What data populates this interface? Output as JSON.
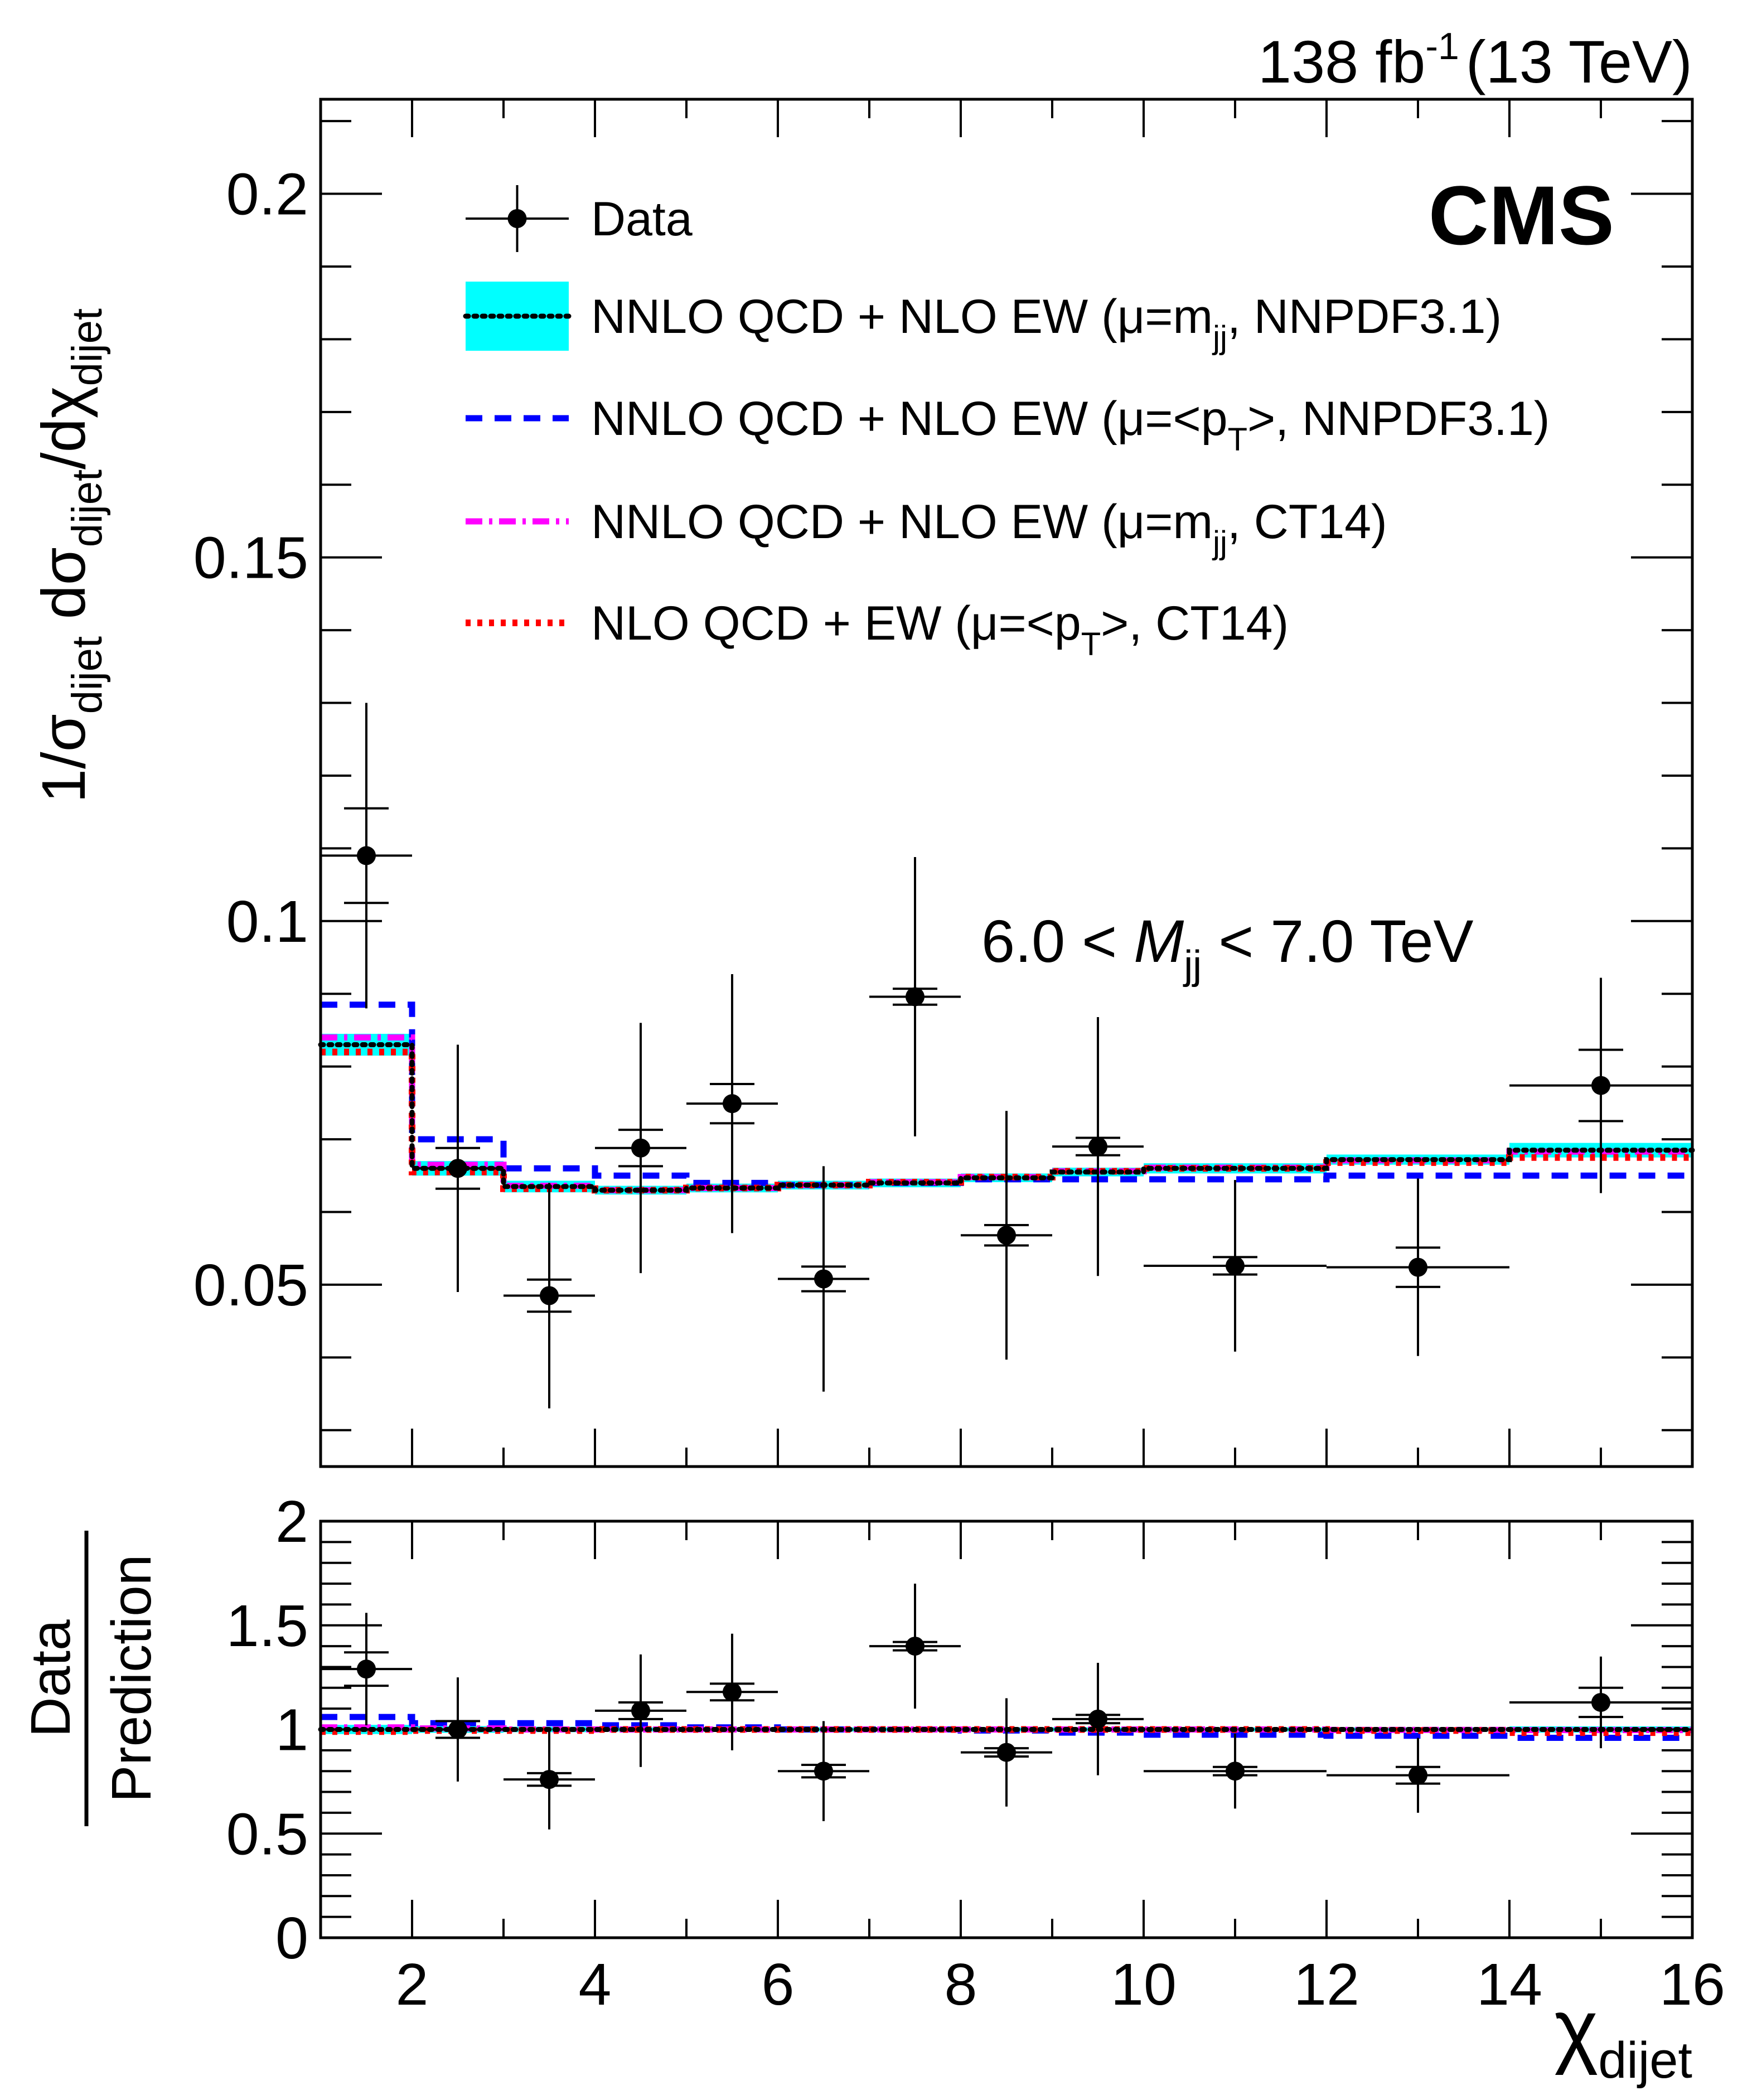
{
  "header": {
    "lumi": "138",
    "lumi_unit": "fb",
    "lumi_exp": "-1",
    "energy": "(13 TeV)",
    "experiment": "CMS"
  },
  "annotation": {
    "pre": "6.0 < ",
    "var": "M",
    "sub": "jj",
    "post": " < 7.0 TeV"
  },
  "axes": {
    "ylabel_top": {
      "a": "1/σ",
      "a_sub": "dijet",
      "b": " dσ",
      "b_sub": "dijet",
      "c": "/dχ",
      "c_sub": "dijet"
    },
    "ylabel_bottom": {
      "num": "Data",
      "den": "Prediction"
    },
    "xlabel": {
      "main": "χ",
      "sub": "dijet"
    },
    "x_ticks": [
      "2",
      "4",
      "6",
      "8",
      "10",
      "12",
      "14",
      "16"
    ],
    "y_top_ticks": [
      "0.05",
      "0.1",
      "0.15",
      "0.2"
    ],
    "y_bottom_ticks": [
      "0",
      "0.5",
      "1",
      "1.5",
      "2"
    ]
  },
  "legend": [
    {
      "key": "data",
      "parts": [
        {
          "t": "Data"
        }
      ]
    },
    {
      "key": "nnpdf_mjj",
      "parts": [
        {
          "t": "NNLO QCD + NLO EW (μ=m"
        },
        {
          "t": "jj",
          "sub": true
        },
        {
          "t": ", NNPDF3.1)"
        }
      ]
    },
    {
      "key": "nnpdf_pt",
      "parts": [
        {
          "t": "NNLO QCD + NLO EW (μ=<p"
        },
        {
          "t": "T",
          "sub": true
        },
        {
          "t": ">, NNPDF3.1)"
        }
      ]
    },
    {
      "key": "ct14_mjj",
      "parts": [
        {
          "t": "NNLO QCD + NLO EW (μ=m"
        },
        {
          "t": "jj",
          "sub": true
        },
        {
          "t": ", CT14)"
        }
      ]
    },
    {
      "key": "ct14_pt",
      "parts": [
        {
          "t": "NLO QCD + EW (μ=<p"
        },
        {
          "t": "T",
          "sub": true
        },
        {
          "t": ">, CT14)"
        }
      ]
    }
  ],
  "colors": {
    "band": "#00ffff",
    "nnpdf_mjj": "#000000",
    "nnpdf_pt": "#0000ff",
    "ct14_mjj": "#ff00ff",
    "ct14_pt": "#ff0000",
    "data": "#000000"
  },
  "chart_data": {
    "type": "line",
    "x_range": [
      1,
      16
    ],
    "y_top_range": [
      0.025,
      0.213
    ],
    "y_bottom_range": [
      0,
      2
    ],
    "bin_edges": [
      1,
      2,
      3,
      4,
      5,
      6,
      7,
      8,
      9,
      10,
      12,
      14,
      16
    ],
    "data": {
      "x": [
        1.5,
        2.5,
        3.5,
        4.5,
        5.5,
        6.5,
        7.5,
        8.5,
        9.5,
        11,
        13,
        15
      ],
      "xerr": [
        0.5,
        0.5,
        0.5,
        0.5,
        0.5,
        0.5,
        0.5,
        0.5,
        0.5,
        1,
        1,
        1
      ],
      "y": [
        0.109,
        0.066,
        0.0485,
        0.0688,
        0.0749,
        0.0508,
        0.0896,
        0.0568,
        0.069,
        0.0526,
        0.0524,
        0.0774
      ],
      "err_total": [
        0.021,
        0.017,
        0.0155,
        0.0172,
        0.0178,
        0.0155,
        0.0192,
        0.0171,
        0.0178,
        0.0118,
        0.0122,
        0.0148
      ],
      "err_stat": [
        0.0065,
        0.0028,
        0.0022,
        0.0025,
        0.0027,
        0.0017,
        0.0011,
        0.0014,
        0.0012,
        0.0012,
        0.0027,
        0.0049
      ]
    },
    "series": [
      {
        "name": "NNLO QCD + NLO EW (μ=m_jj, NNPDF3.1)",
        "key": "nnpdf_mjj",
        "values": [
          0.083,
          0.066,
          0.0635,
          0.063,
          0.0633,
          0.0637,
          0.064,
          0.0647,
          0.0655,
          0.066,
          0.0672,
          0.0685
        ],
        "band": [
          0.0015,
          0.001,
          0.0008,
          0.0006,
          0.0006,
          0.0006,
          0.0006,
          0.0006,
          0.0006,
          0.0007,
          0.0007,
          0.001
        ]
      },
      {
        "name": "NNLO QCD + NLO EW (μ=<p_T>, NNPDF3.1)",
        "key": "nnpdf_pt",
        "values": [
          0.0885,
          0.07,
          0.066,
          0.065,
          0.064,
          0.0637,
          0.064,
          0.0645,
          0.0645,
          0.0645,
          0.065,
          0.065
        ]
      },
      {
        "name": "NNLO QCD + NLO EW (μ=m_jj, CT14)",
        "key": "ct14_mjj",
        "values": [
          0.084,
          0.0665,
          0.0636,
          0.063,
          0.0633,
          0.0637,
          0.0641,
          0.0648,
          0.0656,
          0.0661,
          0.0671,
          0.0683
        ]
      },
      {
        "name": "NLO QCD + EW (μ=<p_T>, CT14)",
        "key": "ct14_pt",
        "values": [
          0.082,
          0.0655,
          0.0632,
          0.063,
          0.0633,
          0.0637,
          0.0641,
          0.0648,
          0.0656,
          0.066,
          0.0668,
          0.0675
        ]
      }
    ],
    "ratio": {
      "data": {
        "y": [
          1.29,
          1.0,
          0.76,
          1.09,
          1.18,
          0.8,
          1.4,
          0.89,
          1.05,
          0.8,
          0.78,
          1.13
        ],
        "err_total": [
          0.27,
          0.25,
          0.24,
          0.27,
          0.28,
          0.24,
          0.3,
          0.26,
          0.27,
          0.18,
          0.18,
          0.22
        ],
        "err_stat": [
          0.08,
          0.04,
          0.03,
          0.04,
          0.04,
          0.03,
          0.02,
          0.02,
          0.02,
          0.02,
          0.04,
          0.07
        ]
      },
      "series": [
        {
          "key": "nnpdf_mjj",
          "values": [
            1.0,
            1.0,
            1.0,
            1.0,
            1.0,
            1.0,
            1.0,
            1.0,
            1.0,
            1.0,
            1.0,
            1.0
          ],
          "band": [
            0.022,
            0.016,
            0.013,
            0.01,
            0.01,
            0.01,
            0.01,
            0.01,
            0.01,
            0.01,
            0.01,
            0.015
          ]
        },
        {
          "key": "nnpdf_pt",
          "values": [
            1.06,
            1.03,
            1.03,
            1.02,
            1.01,
            1.0,
            1.0,
            0.995,
            0.985,
            0.975,
            0.97,
            0.96
          ]
        },
        {
          "key": "ct14_mjj",
          "values": [
            1.01,
            1.005,
            1.0,
            1.0,
            1.0,
            1.0,
            1.0,
            1.0,
            1.0,
            1.0,
            0.998,
            0.997
          ]
        },
        {
          "key": "ct14_pt",
          "values": [
            0.99,
            0.995,
            0.995,
            1.0,
            1.0,
            1.0,
            1.0,
            1.0,
            1.0,
            1.0,
            0.995,
            0.985
          ]
        }
      ]
    }
  }
}
